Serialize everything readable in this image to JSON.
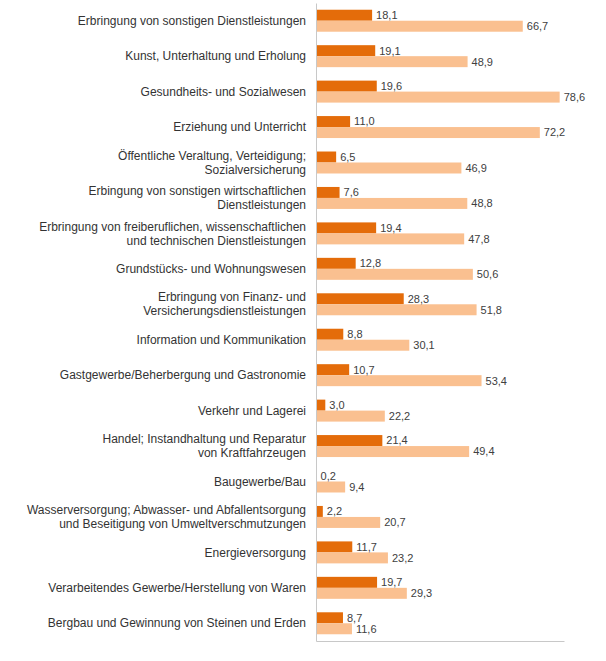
{
  "chart_data": {
    "type": "bar",
    "orientation": "horizontal",
    "categories": [
      "Erbringung von sonstigen Dienstleistungen",
      "Kunst, Unterhaltung und Erholung",
      "Gesundheits- und Sozialwesen",
      "Erziehung und Unterricht",
      "Öffentliche Veraltung, Verteidigung;\nSozialversicherung",
      "Erbingung von sonstigen wirtschaftlichen\nDienstleistungen",
      "Erbringung von freiberuflichen, wissenschaftlichen\nund technischen Dienstleistungen",
      "Grundstücks- und Wohnungswesen",
      "Erbringung von Finanz- und\nVersicherungsdienstleistungen",
      "Information und Kommunikation",
      "Gastgewerbe/Beherbergung und Gastronomie",
      "Verkehr und Lagerei",
      "Handel; Instandhaltung und Reparatur\nvon Kraftfahrzeugen",
      "Baugewerbe/Bau",
      "Wasserversorgung; Abwasser- und Abfallentsorgung\nund Beseitigung von Umweltverschmutzungen",
      "Energieversorgung",
      "Verarbeitendes Gewerbe/Herstellung von Waren",
      "Bergbau und Gewinnung von Steinen und Erden"
    ],
    "series": [
      {
        "color": "#e46c0a",
        "values": [
          18.1,
          19.1,
          19.6,
          11.0,
          6.5,
          7.6,
          19.4,
          12.8,
          28.3,
          8.8,
          10.7,
          3.0,
          21.4,
          0.2,
          2.2,
          11.7,
          19.7,
          8.7
        ],
        "value_labels": [
          "18,1",
          "19,1",
          "19,6",
          "11,0",
          "6,5",
          "7,6",
          "19,4",
          "12,8",
          "28,3",
          "8,8",
          "10,7",
          "3,0",
          "21,4",
          "0,2",
          "2,2",
          "11,7",
          "19,7",
          "8,7"
        ]
      },
      {
        "color": "#fac090",
        "values": [
          66.7,
          48.9,
          78.6,
          72.2,
          46.9,
          48.8,
          47.8,
          50.6,
          51.8,
          30.1,
          53.4,
          22.2,
          49.4,
          9.4,
          20.7,
          23.2,
          29.3,
          11.6
        ],
        "value_labels": [
          "66,7",
          "48,9",
          "78,6",
          "72,2",
          "46,9",
          "48,8",
          "47,8",
          "50,6",
          "51,8",
          "30,1",
          "53,4",
          "22,2",
          "49,4",
          "9,4",
          "20,7",
          "23,2",
          "29,3",
          "11,6"
        ]
      }
    ],
    "xlim": [
      0,
      80
    ],
    "grid": false,
    "data_labels": true,
    "tick_labels": "y"
  }
}
